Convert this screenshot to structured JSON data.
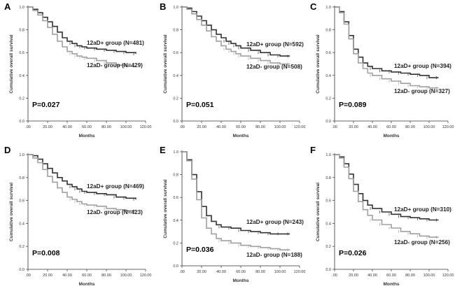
{
  "figure": {
    "colors": {
      "plus": "#333333",
      "minus": "#a0a0a0",
      "axis": "#333333"
    }
  },
  "chart_data": [
    {
      "panel_label": "A",
      "type": "line",
      "xlabel": "Months",
      "ylabel": "Cumulative overall survival",
      "xlim": [
        0,
        120
      ],
      "ylim": [
        0,
        1.0
      ],
      "xticks": [
        ".00",
        "20.00",
        "40.00",
        "60.00",
        "80.00",
        "100.00",
        "120.00"
      ],
      "yticks": [
        "0.0",
        "0.2",
        "0.4",
        "0.6",
        "0.8",
        "1.0"
      ],
      "p_value": "P=0.027",
      "series": [
        {
          "name": "12aD+ group (N=481)",
          "x": [
            0,
            5,
            10,
            15,
            20,
            25,
            30,
            35,
            40,
            45,
            50,
            55,
            60,
            70,
            80,
            90,
            100,
            110
          ],
          "y": [
            1.0,
            0.98,
            0.95,
            0.91,
            0.87,
            0.83,
            0.78,
            0.73,
            0.7,
            0.68,
            0.66,
            0.65,
            0.64,
            0.63,
            0.62,
            0.61,
            0.6,
            0.59
          ]
        },
        {
          "name": "12aD- group (N=429)",
          "x": [
            0,
            5,
            10,
            15,
            20,
            25,
            30,
            35,
            40,
            45,
            50,
            55,
            60,
            70,
            80,
            90,
            100,
            110
          ],
          "y": [
            1.0,
            0.97,
            0.93,
            0.88,
            0.82,
            0.76,
            0.7,
            0.65,
            0.61,
            0.59,
            0.57,
            0.56,
            0.55,
            0.53,
            0.51,
            0.49,
            0.48,
            0.48
          ]
        }
      ]
    },
    {
      "panel_label": "B",
      "type": "line",
      "xlabel": "Months",
      "ylabel": "Cumulative overall survival",
      "xlim": [
        0,
        120
      ],
      "ylim": [
        0,
        1.0
      ],
      "xticks": [
        ".00",
        "20.00",
        "40.00",
        "60.00",
        "80.00",
        "100.00",
        "120.00"
      ],
      "yticks": [
        "0.0",
        "0.2",
        "0.4",
        "0.6",
        "0.8",
        "1.0"
      ],
      "p_value": "P=0.051",
      "series": [
        {
          "name": "12aD+ group (N=592)",
          "x": [
            0,
            5,
            10,
            15,
            20,
            25,
            30,
            35,
            40,
            45,
            50,
            55,
            60,
            70,
            80,
            90,
            100,
            110
          ],
          "y": [
            1.0,
            0.99,
            0.96,
            0.92,
            0.88,
            0.84,
            0.8,
            0.76,
            0.73,
            0.7,
            0.68,
            0.66,
            0.64,
            0.62,
            0.6,
            0.58,
            0.57,
            0.57
          ]
        },
        {
          "name": "12aD- group (N=508)",
          "x": [
            0,
            5,
            10,
            15,
            20,
            25,
            30,
            35,
            40,
            45,
            50,
            55,
            60,
            70,
            80,
            90,
            100,
            110
          ],
          "y": [
            1.0,
            0.98,
            0.94,
            0.89,
            0.84,
            0.79,
            0.74,
            0.7,
            0.66,
            0.63,
            0.61,
            0.59,
            0.57,
            0.55,
            0.53,
            0.51,
            0.5,
            0.5
          ]
        }
      ]
    },
    {
      "panel_label": "C",
      "type": "line",
      "xlabel": "Months",
      "ylabel": "Cumulative overall survival",
      "xlim": [
        0,
        120
      ],
      "ylim": [
        0,
        1.0
      ],
      "xticks": [
        ".00",
        "20.00",
        "40.00",
        "60.00",
        "80.00",
        "100.00",
        "120.00"
      ],
      "yticks": [
        "0.0",
        "0.2",
        "0.4",
        "0.6",
        "0.8",
        "1.0"
      ],
      "p_value": "P=0.089",
      "series": [
        {
          "name": "12aD+ group (N=394)",
          "x": [
            0,
            5,
            10,
            15,
            20,
            25,
            30,
            35,
            40,
            50,
            60,
            70,
            80,
            90,
            100,
            110
          ],
          "y": [
            1.0,
            0.96,
            0.87,
            0.75,
            0.63,
            0.56,
            0.51,
            0.48,
            0.46,
            0.44,
            0.43,
            0.42,
            0.41,
            0.4,
            0.38,
            0.38
          ]
        },
        {
          "name": "12aD- group (N=327)",
          "x": [
            0,
            5,
            10,
            15,
            20,
            25,
            30,
            35,
            40,
            50,
            60,
            70,
            80,
            90,
            100,
            110
          ],
          "y": [
            1.0,
            0.95,
            0.85,
            0.72,
            0.59,
            0.51,
            0.46,
            0.42,
            0.4,
            0.37,
            0.35,
            0.33,
            0.31,
            0.3,
            0.29,
            0.29
          ]
        }
      ]
    },
    {
      "panel_label": "D",
      "type": "line",
      "xlabel": "Months",
      "ylabel": "Cumulative overall survival",
      "xlim": [
        0,
        120
      ],
      "ylim": [
        0,
        1.0
      ],
      "xticks": [
        ".00",
        "20.00",
        "40.00",
        "60.00",
        "80.00",
        "100.00",
        "120.00"
      ],
      "yticks": [
        "0.0",
        "0.2",
        "0.4",
        "0.6",
        "0.8",
        "1.0"
      ],
      "p_value": "P=0.008",
      "series": [
        {
          "name": "12aD+ group (N=469)",
          "x": [
            0,
            5,
            10,
            15,
            20,
            25,
            30,
            35,
            40,
            45,
            50,
            55,
            60,
            70,
            80,
            90,
            100,
            110
          ],
          "y": [
            1.0,
            0.99,
            0.96,
            0.92,
            0.88,
            0.84,
            0.8,
            0.77,
            0.74,
            0.72,
            0.7,
            0.68,
            0.67,
            0.66,
            0.65,
            0.63,
            0.62,
            0.61
          ]
        },
        {
          "name": "12aD- group (N=423)",
          "x": [
            0,
            5,
            10,
            15,
            20,
            25,
            30,
            35,
            40,
            45,
            50,
            55,
            60,
            70,
            80,
            90,
            100,
            110
          ],
          "y": [
            1.0,
            0.97,
            0.93,
            0.87,
            0.81,
            0.76,
            0.71,
            0.67,
            0.63,
            0.61,
            0.59,
            0.57,
            0.56,
            0.55,
            0.53,
            0.52,
            0.51,
            0.51
          ]
        }
      ]
    },
    {
      "panel_label": "E",
      "type": "line",
      "xlabel": "Months",
      "ylabel": "Cumulative overall survival",
      "xlim": [
        0,
        120
      ],
      "ylim": [
        0,
        1.0
      ],
      "xticks": [
        ".00",
        "20.00",
        "40.00",
        "60.00",
        "80.00",
        "100.00",
        "120.00"
      ],
      "yticks": [
        "0.0",
        "0.2",
        "0.4",
        "0.6",
        "0.8",
        "1.0"
      ],
      "p_value": "P=0.036",
      "series": [
        {
          "name": "12aD+ group (N=243)",
          "x": [
            0,
            5,
            10,
            15,
            20,
            25,
            30,
            35,
            40,
            50,
            60,
            70,
            80,
            90,
            100,
            110
          ],
          "y": [
            1.0,
            0.93,
            0.8,
            0.65,
            0.52,
            0.44,
            0.39,
            0.36,
            0.34,
            0.33,
            0.31,
            0.3,
            0.29,
            0.28,
            0.28,
            0.28
          ]
        },
        {
          "name": "12aD- group (N=188)",
          "x": [
            0,
            5,
            10,
            15,
            20,
            25,
            30,
            35,
            40,
            50,
            60,
            70,
            80,
            90,
            100,
            110
          ],
          "y": [
            1.0,
            0.92,
            0.76,
            0.58,
            0.42,
            0.33,
            0.28,
            0.24,
            0.22,
            0.2,
            0.18,
            0.17,
            0.16,
            0.15,
            0.14,
            0.14
          ]
        }
      ]
    },
    {
      "panel_label": "F",
      "type": "line",
      "xlabel": "Months",
      "ylabel": "Cumulative overall survival",
      "xlim": [
        0,
        120
      ],
      "ylim": [
        0,
        1.0
      ],
      "xticks": [
        ".00",
        "20.00",
        "40.00",
        "60.00",
        "80.00",
        "100.00",
        "120.00"
      ],
      "yticks": [
        "0.0",
        "0.2",
        "0.4",
        "0.6",
        "0.8",
        "1.0"
      ],
      "p_value": "P=0.026",
      "series": [
        {
          "name": "12aD+ group (N=310)",
          "x": [
            0,
            5,
            10,
            15,
            20,
            25,
            30,
            35,
            40,
            50,
            60,
            70,
            80,
            90,
            100,
            110
          ],
          "y": [
            1.0,
            0.98,
            0.92,
            0.83,
            0.74,
            0.66,
            0.6,
            0.56,
            0.53,
            0.5,
            0.48,
            0.46,
            0.45,
            0.44,
            0.43,
            0.43
          ]
        },
        {
          "name": "12aD- group (N=256)",
          "x": [
            0,
            5,
            10,
            15,
            20,
            25,
            30,
            35,
            40,
            50,
            60,
            70,
            80,
            90,
            100,
            110
          ],
          "y": [
            1.0,
            0.97,
            0.89,
            0.79,
            0.68,
            0.59,
            0.52,
            0.47,
            0.43,
            0.39,
            0.36,
            0.33,
            0.31,
            0.29,
            0.28,
            0.28
          ]
        }
      ]
    }
  ]
}
